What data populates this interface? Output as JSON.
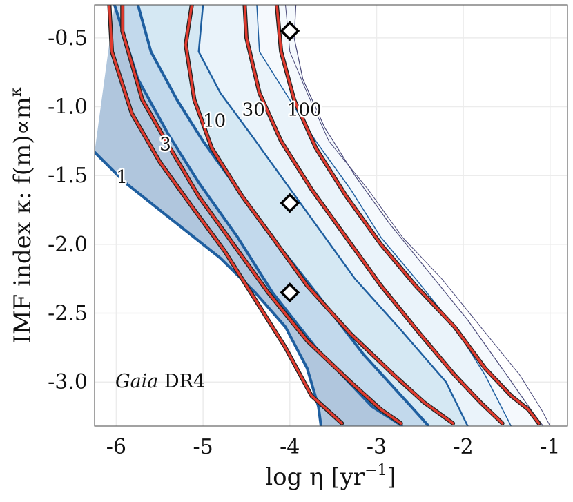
{
  "chart_data": {
    "type": "area",
    "title": "",
    "xlabel": "log η [yr",
    "xlabel_superscript": "−1",
    "xlabel_close": "]",
    "ylabel": "IMF index κ: f(m)∝m",
    "ylabel_superscript": "κ",
    "xlim": [
      -6.25,
      -0.8
    ],
    "ylim": [
      -3.32,
      -0.26
    ],
    "x_ticks": [
      -6,
      -5,
      -4,
      -3,
      -2,
      -1
    ],
    "x_tick_labels": [
      "-6",
      "-5",
      "-4",
      "-3",
      "-2",
      "-1"
    ],
    "y_ticks": [
      -0.5,
      -1.0,
      -1.5,
      -2.0,
      -2.5,
      -3.0
    ],
    "y_tick_labels": [
      "-0.5",
      "-1.0",
      "-1.5",
      "-2.0",
      "-2.5",
      "-3.0"
    ],
    "grid": true,
    "annotation": {
      "italic": "Gaia",
      "rest": " DR4"
    },
    "levels": [
      {
        "label": "1",
        "color": "#b0c6dd",
        "left_edge": [
          [
            -6.25,
            -1.33
          ],
          [
            -5.9,
            -1.55
          ],
          [
            -5.3,
            -1.85
          ],
          [
            -4.8,
            -2.1
          ],
          [
            -4.4,
            -2.35
          ],
          [
            -4.05,
            -2.6
          ],
          [
            -3.8,
            -2.9
          ],
          [
            -3.67,
            -3.18
          ],
          [
            -3.64,
            -3.32
          ]
        ],
        "right_edge": [
          [
            -6.02,
            -0.26
          ],
          [
            -5.75,
            -0.8
          ],
          [
            -5.4,
            -1.2
          ],
          [
            -5.05,
            -1.55
          ],
          [
            -4.6,
            -1.95
          ],
          [
            -4.2,
            -2.35
          ],
          [
            -3.7,
            -2.75
          ],
          [
            -3.05,
            -3.18
          ],
          [
            -2.7,
            -3.32
          ]
        ],
        "median": [
          [
            -6.08,
            -0.26
          ],
          [
            -6.05,
            -0.6
          ],
          [
            -5.82,
            -1.05
          ],
          [
            -5.5,
            -1.4
          ],
          [
            -5.1,
            -1.75
          ],
          [
            -4.75,
            -2.05
          ],
          [
            -4.4,
            -2.4
          ],
          [
            -4.05,
            -2.75
          ],
          [
            -3.75,
            -3.1
          ],
          [
            -3.4,
            -3.3
          ]
        ]
      },
      {
        "label": "3",
        "color": "#c2d9ec",
        "left_edge": [
          [
            -6.02,
            -0.26
          ],
          [
            -5.75,
            -0.8
          ],
          [
            -5.4,
            -1.2
          ],
          [
            -5.05,
            -1.55
          ],
          [
            -4.6,
            -1.95
          ],
          [
            -4.2,
            -2.35
          ],
          [
            -3.7,
            -2.75
          ],
          [
            -3.05,
            -3.18
          ],
          [
            -2.7,
            -3.32
          ]
        ],
        "right_edge": [
          [
            -5.75,
            -0.26
          ],
          [
            -5.6,
            -0.6
          ],
          [
            -5.3,
            -0.95
          ],
          [
            -5.0,
            -1.25
          ],
          [
            -4.6,
            -1.6
          ],
          [
            -4.2,
            -1.95
          ],
          [
            -3.7,
            -2.35
          ],
          [
            -3.15,
            -2.8
          ],
          [
            -2.6,
            -3.18
          ],
          [
            -2.4,
            -3.32
          ]
        ],
        "median": [
          [
            -5.93,
            -0.26
          ],
          [
            -5.93,
            -0.45
          ],
          [
            -5.7,
            -0.95
          ],
          [
            -5.38,
            -1.3
          ],
          [
            -5.05,
            -1.65
          ],
          [
            -4.65,
            -2.0
          ],
          [
            -4.25,
            -2.35
          ],
          [
            -3.8,
            -2.7
          ],
          [
            -3.3,
            -3.0
          ],
          [
            -2.95,
            -3.2
          ],
          [
            -2.72,
            -3.3
          ]
        ]
      },
      {
        "label": "10",
        "color": "#d5e8f3",
        "left_edge": [
          [
            -5.75,
            -0.26
          ],
          [
            -5.6,
            -0.6
          ],
          [
            -5.3,
            -0.95
          ],
          [
            -5.0,
            -1.25
          ],
          [
            -4.6,
            -1.6
          ],
          [
            -4.2,
            -1.95
          ],
          [
            -3.7,
            -2.35
          ],
          [
            -3.15,
            -2.8
          ],
          [
            -2.6,
            -3.18
          ],
          [
            -2.4,
            -3.32
          ]
        ],
        "right_edge": [
          [
            -5.0,
            -0.26
          ],
          [
            -5.05,
            -0.6
          ],
          [
            -4.8,
            -0.9
          ],
          [
            -4.45,
            -1.2
          ],
          [
            -4.05,
            -1.55
          ],
          [
            -3.65,
            -1.9
          ],
          [
            -3.25,
            -2.25
          ],
          [
            -2.75,
            -2.6
          ],
          [
            -2.2,
            -3.0
          ],
          [
            -1.95,
            -3.32
          ]
        ],
        "median": [
          [
            -5.13,
            -0.26
          ],
          [
            -5.2,
            -0.55
          ],
          [
            -5.1,
            -0.95
          ],
          [
            -4.9,
            -1.3
          ],
          [
            -4.55,
            -1.65
          ],
          [
            -4.2,
            -1.95
          ],
          [
            -3.8,
            -2.3
          ],
          [
            -3.3,
            -2.65
          ],
          [
            -2.8,
            -2.95
          ],
          [
            -2.45,
            -3.15
          ],
          [
            -2.12,
            -3.3
          ]
        ]
      },
      {
        "label": "30",
        "color": "#eaf3fa",
        "left_edge": [
          [
            -5.0,
            -0.26
          ],
          [
            -5.05,
            -0.6
          ],
          [
            -4.8,
            -0.9
          ],
          [
            -4.45,
            -1.2
          ],
          [
            -4.05,
            -1.55
          ],
          [
            -3.65,
            -1.9
          ],
          [
            -3.25,
            -2.25
          ],
          [
            -2.75,
            -2.6
          ],
          [
            -2.2,
            -3.0
          ],
          [
            -1.95,
            -3.32
          ]
        ],
        "right_edge": [
          [
            -4.38,
            -0.26
          ],
          [
            -4.35,
            -0.6
          ],
          [
            -4.05,
            -0.9
          ],
          [
            -3.7,
            -1.25
          ],
          [
            -3.3,
            -1.6
          ],
          [
            -2.95,
            -1.95
          ],
          [
            -2.55,
            -2.25
          ],
          [
            -2.1,
            -2.6
          ],
          [
            -1.75,
            -2.95
          ],
          [
            -1.45,
            -3.32
          ]
        ],
        "median": [
          [
            -4.52,
            -0.26
          ],
          [
            -4.5,
            -0.5
          ],
          [
            -4.35,
            -0.9
          ],
          [
            -4.1,
            -1.25
          ],
          [
            -3.75,
            -1.6
          ],
          [
            -3.35,
            -1.95
          ],
          [
            -2.95,
            -2.3
          ],
          [
            -2.5,
            -2.65
          ],
          [
            -2.1,
            -2.95
          ],
          [
            -1.8,
            -3.15
          ],
          [
            -1.55,
            -3.3
          ]
        ]
      },
      {
        "label": "100",
        "color": "#f5f9fd",
        "left_edge": [
          [
            -4.38,
            -0.26
          ],
          [
            -4.35,
            -0.6
          ],
          [
            -4.05,
            -0.9
          ],
          [
            -3.7,
            -1.25
          ],
          [
            -3.3,
            -1.6
          ],
          [
            -2.95,
            -1.95
          ],
          [
            -2.55,
            -2.25
          ],
          [
            -2.1,
            -2.6
          ],
          [
            -1.75,
            -2.95
          ],
          [
            -1.45,
            -3.32
          ]
        ],
        "right_edge": [
          [
            -3.93,
            -0.26
          ],
          [
            -3.95,
            -0.5
          ],
          [
            -3.85,
            -0.8
          ],
          [
            -3.6,
            -1.15
          ],
          [
            -3.25,
            -1.5
          ],
          [
            -2.85,
            -1.85
          ],
          [
            -2.4,
            -2.2
          ],
          [
            -1.95,
            -2.55
          ],
          [
            -1.5,
            -2.95
          ],
          [
            -1.2,
            -3.22
          ],
          [
            -1.08,
            -3.32
          ]
        ],
        "median": [
          [
            -4.15,
            -0.26
          ],
          [
            -4.1,
            -0.6
          ],
          [
            -3.95,
            -0.95
          ],
          [
            -3.7,
            -1.3
          ],
          [
            -3.35,
            -1.65
          ],
          [
            -2.95,
            -2.0
          ],
          [
            -2.55,
            -2.3
          ],
          [
            -2.1,
            -2.6
          ],
          [
            -1.75,
            -2.9
          ],
          [
            -1.45,
            -3.1
          ],
          [
            -1.25,
            -3.2
          ],
          [
            -1.13,
            -3.3
          ]
        ]
      }
    ],
    "outer_outline": [
      [
        -4.05,
        -0.26
      ],
      [
        -4.0,
        -0.6
      ],
      [
        -3.8,
        -0.9
      ],
      [
        -3.55,
        -1.25
      ],
      [
        -3.1,
        -1.6
      ],
      [
        -2.7,
        -1.95
      ],
      [
        -2.25,
        -2.25
      ],
      [
        -1.8,
        -2.6
      ],
      [
        -1.35,
        -2.95
      ],
      [
        -1.1,
        -3.2
      ],
      [
        -1.0,
        -3.32
      ]
    ],
    "contour_labels": [
      {
        "text": "1",
        "x": -6.0,
        "y": -1.51
      },
      {
        "text": "3",
        "x": -5.5,
        "y": -1.27
      },
      {
        "text": "10",
        "x": -5.0,
        "y": -1.1
      },
      {
        "text": "30",
        "x": -4.55,
        "y": -1.02
      },
      {
        "text": "100",
        "x": -4.03,
        "y": -1.02
      }
    ],
    "markers": [
      {
        "x": -4.0,
        "y": -0.45
      },
      {
        "x": -4.0,
        "y": -1.7
      },
      {
        "x": -4.0,
        "y": -2.35
      }
    ],
    "colors": {
      "edge": "#1f5fa0",
      "median_fill": "#e03a2e",
      "median_outline": "#222222",
      "outline_thin": "#4a4a7a",
      "grid": "#ececec",
      "marker_stroke": "#000000",
      "marker_fill": "#ffffff"
    }
  }
}
